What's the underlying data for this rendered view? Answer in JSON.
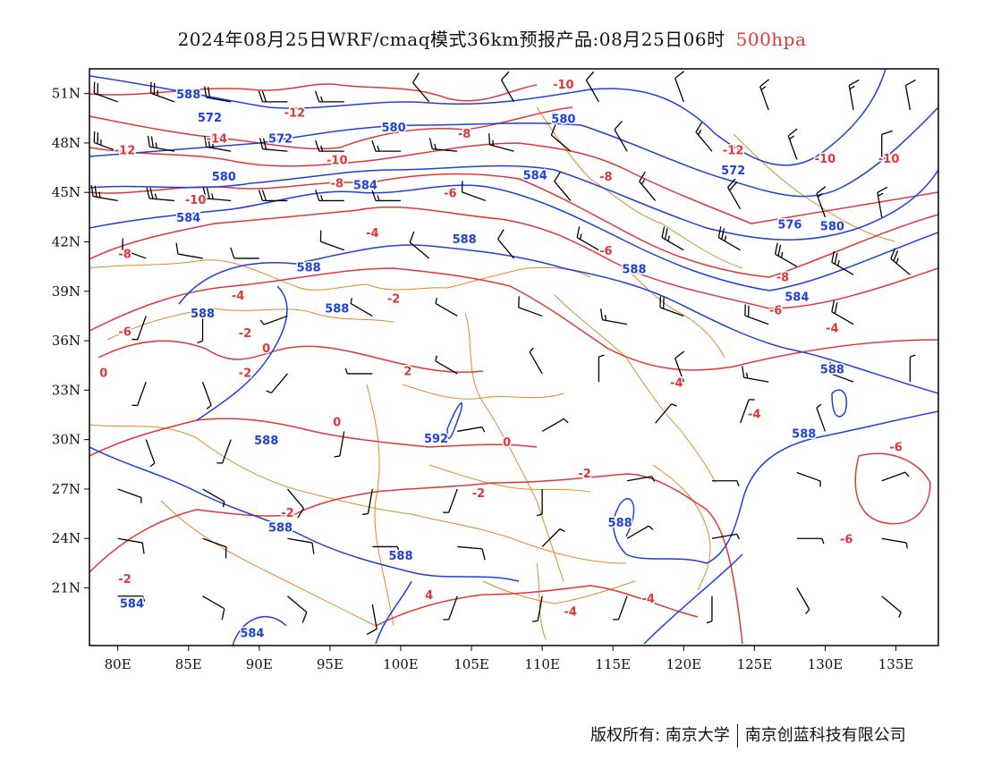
{
  "title": {
    "main": "2024年08月25日WRF/cmaq模式36km预报产品:08月25日06时",
    "level": "500hpa"
  },
  "axes": {
    "lat_labels": [
      "51N",
      "48N",
      "45N",
      "42N",
      "39N",
      "36N",
      "33N",
      "30N",
      "27N",
      "24N",
      "21N"
    ],
    "lon_labels": [
      "80E",
      "85E",
      "90E",
      "95E",
      "100E",
      "105E",
      "110E",
      "115E",
      "120E",
      "125E",
      "130E",
      "135E"
    ]
  },
  "map": {
    "lon_range": [
      78,
      138
    ],
    "lat_range": [
      17.5,
      52.5
    ],
    "colors": {
      "height_contour": "#1f3fe0",
      "temperature_contour": "#e23636",
      "boundary": "#e08a2a",
      "wind_barb": "#000000"
    },
    "height_contours": [
      {
        "value": "572",
        "labels": [
          [
            86.5,
            49.5
          ],
          [
            91.5,
            48.2
          ],
          [
            123.5,
            46.3
          ]
        ]
      },
      {
        "value": "576",
        "labels": [
          [
            127.5,
            43.0
          ]
        ]
      },
      {
        "value": "580",
        "labels": [
          [
            99.5,
            48.9
          ],
          [
            111.5,
            49.4
          ],
          [
            87.5,
            45.9
          ],
          [
            130.5,
            42.9
          ]
        ]
      },
      {
        "value": "584",
        "labels": [
          [
            97.5,
            45.4
          ],
          [
            109.5,
            46.0
          ],
          [
            85.0,
            43.4
          ],
          [
            128.0,
            38.6
          ],
          [
            81.0,
            20.0
          ],
          [
            89.5,
            18.2
          ]
        ]
      },
      {
        "value": "588",
        "labels": [
          [
            85.0,
            50.9
          ],
          [
            104.5,
            42.1
          ],
          [
            93.5,
            40.4
          ],
          [
            116.5,
            40.3
          ],
          [
            86.0,
            37.6
          ],
          [
            95.5,
            37.9
          ],
          [
            130.5,
            34.2
          ],
          [
            128.5,
            30.3
          ],
          [
            90.5,
            29.9
          ],
          [
            91.5,
            24.6
          ],
          [
            100.0,
            22.9
          ],
          [
            115.5,
            24.9
          ]
        ]
      },
      {
        "value": "592",
        "labels": [
          [
            102.5,
            30.0
          ]
        ]
      }
    ],
    "temperature_contours": [
      {
        "value": "-14",
        "labels": [
          [
            87.0,
            48.2
          ]
        ]
      },
      {
        "value": "-12",
        "labels": [
          [
            80.5,
            47.5
          ],
          [
            92.5,
            49.8
          ],
          [
            123.5,
            47.5
          ]
        ]
      },
      {
        "value": "-10",
        "labels": [
          [
            111.5,
            51.5
          ],
          [
            95.5,
            46.9
          ],
          [
            85.5,
            44.5
          ],
          [
            130.0,
            47.0
          ],
          [
            134.5,
            47.0
          ]
        ]
      },
      {
        "value": "-8",
        "labels": [
          [
            104.5,
            48.5
          ],
          [
            95.5,
            45.5
          ],
          [
            114.5,
            45.9
          ],
          [
            80.5,
            41.2
          ],
          [
            127.0,
            39.8
          ]
        ]
      },
      {
        "value": "-6",
        "labels": [
          [
            103.5,
            44.9
          ],
          [
            114.5,
            41.4
          ],
          [
            126.5,
            37.8
          ],
          [
            80.5,
            36.5
          ],
          [
            135.0,
            29.5
          ],
          [
            131.5,
            23.9
          ]
        ]
      },
      {
        "value": "-4",
        "labels": [
          [
            98.0,
            42.5
          ],
          [
            88.5,
            38.7
          ],
          [
            119.5,
            33.4
          ],
          [
            125.0,
            31.5
          ],
          [
            130.5,
            36.7
          ],
          [
            112.0,
            19.5
          ],
          [
            117.5,
            20.3
          ]
        ]
      },
      {
        "value": "-2",
        "labels": [
          [
            99.5,
            38.5
          ],
          [
            89.0,
            36.4
          ],
          [
            89.0,
            34.0
          ],
          [
            105.5,
            26.7
          ],
          [
            113.0,
            27.9
          ],
          [
            80.5,
            21.5
          ],
          [
            92.0,
            25.5
          ]
        ]
      },
      {
        "value": "0",
        "labels": [
          [
            79.0,
            34.0
          ],
          [
            90.5,
            35.5
          ],
          [
            95.5,
            31.0
          ],
          [
            107.5,
            29.8
          ]
        ]
      },
      {
        "value": "2",
        "labels": [
          [
            100.5,
            34.1
          ]
        ]
      },
      {
        "value": "4",
        "labels": [
          [
            102.0,
            20.5
          ]
        ]
      }
    ],
    "wind_barbs": [
      {
        "lon": 80,
        "lat": 50.5,
        "speed": 20,
        "dir": 290
      },
      {
        "lon": 84,
        "lat": 50.5,
        "speed": 25,
        "dir": 290
      },
      {
        "lon": 88,
        "lat": 50.5,
        "speed": 20,
        "dir": 280
      },
      {
        "lon": 92,
        "lat": 50.5,
        "speed": 20,
        "dir": 270
      },
      {
        "lon": 96,
        "lat": 50.5,
        "speed": 15,
        "dir": 270
      },
      {
        "lon": 102,
        "lat": 50.5,
        "speed": 10,
        "dir": 320
      },
      {
        "lon": 108,
        "lat": 50.5,
        "speed": 10,
        "dir": 330
      },
      {
        "lon": 114,
        "lat": 50.5,
        "speed": 10,
        "dir": 330
      },
      {
        "lon": 120,
        "lat": 50.5,
        "speed": 10,
        "dir": 340
      },
      {
        "lon": 126,
        "lat": 50.0,
        "speed": 15,
        "dir": 340
      },
      {
        "lon": 132,
        "lat": 50.0,
        "speed": 15,
        "dir": 350
      },
      {
        "lon": 136,
        "lat": 50.0,
        "speed": 10,
        "dir": 350
      },
      {
        "lon": 80,
        "lat": 47.5,
        "speed": 25,
        "dir": 290
      },
      {
        "lon": 84,
        "lat": 47.5,
        "speed": 25,
        "dir": 280
      },
      {
        "lon": 88,
        "lat": 47.5,
        "speed": 25,
        "dir": 280
      },
      {
        "lon": 92,
        "lat": 47.5,
        "speed": 20,
        "dir": 275
      },
      {
        "lon": 96,
        "lat": 47.5,
        "speed": 15,
        "dir": 270
      },
      {
        "lon": 100,
        "lat": 47.5,
        "speed": 15,
        "dir": 270
      },
      {
        "lon": 104,
        "lat": 47.5,
        "speed": 15,
        "dir": 275
      },
      {
        "lon": 108,
        "lat": 47.5,
        "speed": 15,
        "dir": 285
      },
      {
        "lon": 112,
        "lat": 47.5,
        "speed": 10,
        "dir": 310
      },
      {
        "lon": 116,
        "lat": 47.5,
        "speed": 10,
        "dir": 330
      },
      {
        "lon": 122,
        "lat": 47.5,
        "speed": 15,
        "dir": 320
      },
      {
        "lon": 128,
        "lat": 47.0,
        "speed": 15,
        "dir": 340
      },
      {
        "lon": 134,
        "lat": 47.0,
        "speed": 10,
        "dir": 0
      },
      {
        "lon": 80,
        "lat": 44.5,
        "speed": 25,
        "dir": 280
      },
      {
        "lon": 84,
        "lat": 44.5,
        "speed": 25,
        "dir": 275
      },
      {
        "lon": 88,
        "lat": 44.5,
        "speed": 25,
        "dir": 275
      },
      {
        "lon": 92,
        "lat": 44.5,
        "speed": 20,
        "dir": 270
      },
      {
        "lon": 96,
        "lat": 44.5,
        "speed": 15,
        "dir": 270
      },
      {
        "lon": 100,
        "lat": 44.5,
        "speed": 15,
        "dir": 270
      },
      {
        "lon": 106,
        "lat": 44.5,
        "speed": 10,
        "dir": 290
      },
      {
        "lon": 112,
        "lat": 44.5,
        "speed": 10,
        "dir": 320
      },
      {
        "lon": 118,
        "lat": 44.5,
        "speed": 15,
        "dir": 320
      },
      {
        "lon": 124,
        "lat": 44.0,
        "speed": 20,
        "dir": 330
      },
      {
        "lon": 130,
        "lat": 43.5,
        "speed": 15,
        "dir": 340
      },
      {
        "lon": 134,
        "lat": 43.5,
        "speed": 15,
        "dir": 350
      },
      {
        "lon": 82,
        "lat": 41.0,
        "speed": 10,
        "dir": 290
      },
      {
        "lon": 86,
        "lat": 41.0,
        "speed": 10,
        "dir": 280
      },
      {
        "lon": 90,
        "lat": 41.0,
        "speed": 10,
        "dir": 270
      },
      {
        "lon": 96,
        "lat": 41.5,
        "speed": 10,
        "dir": 290
      },
      {
        "lon": 102,
        "lat": 41.0,
        "speed": 10,
        "dir": 310
      },
      {
        "lon": 108,
        "lat": 41.0,
        "speed": 10,
        "dir": 320
      },
      {
        "lon": 114,
        "lat": 41.5,
        "speed": 15,
        "dir": 300
      },
      {
        "lon": 120,
        "lat": 41.5,
        "speed": 25,
        "dir": 300
      },
      {
        "lon": 124,
        "lat": 41.5,
        "speed": 25,
        "dir": 300
      },
      {
        "lon": 128,
        "lat": 40.5,
        "speed": 25,
        "dir": 300
      },
      {
        "lon": 132,
        "lat": 40.0,
        "speed": 25,
        "dir": 300
      },
      {
        "lon": 136,
        "lat": 40.0,
        "speed": 25,
        "dir": 310
      },
      {
        "lon": 82,
        "lat": 37.5,
        "speed": 5,
        "dir": 200
      },
      {
        "lon": 86,
        "lat": 37.5,
        "speed": 5,
        "dir": 180
      },
      {
        "lon": 92,
        "lat": 37.5,
        "speed": 5,
        "dir": 250
      },
      {
        "lon": 98,
        "lat": 37.5,
        "speed": 5,
        "dir": 300
      },
      {
        "lon": 104,
        "lat": 37.5,
        "speed": 5,
        "dir": 300
      },
      {
        "lon": 110,
        "lat": 37.5,
        "speed": 10,
        "dir": 290
      },
      {
        "lon": 116,
        "lat": 37.0,
        "speed": 15,
        "dir": 280
      },
      {
        "lon": 120,
        "lat": 37.5,
        "speed": 20,
        "dir": 290
      },
      {
        "lon": 126,
        "lat": 37.0,
        "speed": 20,
        "dir": 290
      },
      {
        "lon": 132,
        "lat": 37.0,
        "speed": 20,
        "dir": 300
      },
      {
        "lon": 82,
        "lat": 33.5,
        "speed": 5,
        "dir": 200
      },
      {
        "lon": 86,
        "lat": 33.5,
        "speed": 5,
        "dir": 160
      },
      {
        "lon": 92,
        "lat": 34.0,
        "speed": 5,
        "dir": 220
      },
      {
        "lon": 98,
        "lat": 34.0,
        "speed": 5,
        "dir": 270
      },
      {
        "lon": 104,
        "lat": 34.0,
        "speed": 5,
        "dir": 300
      },
      {
        "lon": 110,
        "lat": 34.0,
        "speed": 5,
        "dir": 330
      },
      {
        "lon": 114,
        "lat": 33.5,
        "speed": 5,
        "dir": 0
      },
      {
        "lon": 120,
        "lat": 33.5,
        "speed": 10,
        "dir": 340
      },
      {
        "lon": 126,
        "lat": 33.5,
        "speed": 15,
        "dir": 280
      },
      {
        "lon": 132,
        "lat": 33.5,
        "speed": 10,
        "dir": 290
      },
      {
        "lon": 136,
        "lat": 33.5,
        "speed": 5,
        "dir": 0
      },
      {
        "lon": 82,
        "lat": 30.0,
        "speed": 5,
        "dir": 160
      },
      {
        "lon": 88,
        "lat": 30.0,
        "speed": 5,
        "dir": 200
      },
      {
        "lon": 96,
        "lat": 30.5,
        "speed": 5,
        "dir": 190
      },
      {
        "lon": 104,
        "lat": 30.5,
        "speed": 5,
        "dir": 80
      },
      {
        "lon": 110,
        "lat": 30.5,
        "speed": 5,
        "dir": 60
      },
      {
        "lon": 118,
        "lat": 31.0,
        "speed": 5,
        "dir": 40
      },
      {
        "lon": 124,
        "lat": 31.0,
        "speed": 5,
        "dir": 20
      },
      {
        "lon": 130,
        "lat": 30.5,
        "speed": 5,
        "dir": 340
      },
      {
        "lon": 80,
        "lat": 27.0,
        "speed": 5,
        "dir": 110
      },
      {
        "lon": 86,
        "lat": 27.0,
        "speed": 5,
        "dir": 120
      },
      {
        "lon": 92,
        "lat": 27.0,
        "speed": 10,
        "dir": 140
      },
      {
        "lon": 98,
        "lat": 27.0,
        "speed": 5,
        "dir": 190
      },
      {
        "lon": 104,
        "lat": 27.0,
        "speed": 5,
        "dir": 200
      },
      {
        "lon": 110,
        "lat": 27.0,
        "speed": 5,
        "dir": 180
      },
      {
        "lon": 116,
        "lat": 27.5,
        "speed": 5,
        "dir": 80
      },
      {
        "lon": 122,
        "lat": 27.5,
        "speed": 5,
        "dir": 90
      },
      {
        "lon": 128,
        "lat": 28.0,
        "speed": 5,
        "dir": 110
      },
      {
        "lon": 134,
        "lat": 27.5,
        "speed": 5,
        "dir": 70
      },
      {
        "lon": 80,
        "lat": 24.0,
        "speed": 10,
        "dir": 100
      },
      {
        "lon": 86,
        "lat": 24.0,
        "speed": 10,
        "dir": 110
      },
      {
        "lon": 92,
        "lat": 24.0,
        "speed": 10,
        "dir": 100
      },
      {
        "lon": 98,
        "lat": 23.5,
        "speed": 10,
        "dir": 90
      },
      {
        "lon": 104,
        "lat": 23.5,
        "speed": 10,
        "dir": 95
      },
      {
        "lon": 110,
        "lat": 23.5,
        "speed": 5,
        "dir": 45
      },
      {
        "lon": 116,
        "lat": 24.0,
        "speed": 5,
        "dir": 60
      },
      {
        "lon": 122,
        "lat": 24.0,
        "speed": 5,
        "dir": 80
      },
      {
        "lon": 128,
        "lat": 24.0,
        "speed": 5,
        "dir": 90
      },
      {
        "lon": 134,
        "lat": 24.0,
        "speed": 5,
        "dir": 100
      },
      {
        "lon": 80,
        "lat": 20.5,
        "speed": 5,
        "dir": 90
      },
      {
        "lon": 86,
        "lat": 20.5,
        "speed": 10,
        "dir": 120
      },
      {
        "lon": 92,
        "lat": 20.5,
        "speed": 10,
        "dir": 130
      },
      {
        "lon": 98,
        "lat": 20.0,
        "speed": 10,
        "dir": 170
      },
      {
        "lon": 104,
        "lat": 20.5,
        "speed": 5,
        "dir": 200
      },
      {
        "lon": 110,
        "lat": 20.5,
        "speed": 5,
        "dir": 190
      },
      {
        "lon": 116,
        "lat": 20.5,
        "speed": 5,
        "dir": 200
      },
      {
        "lon": 122,
        "lat": 20.5,
        "speed": 5,
        "dir": 180
      },
      {
        "lon": 128,
        "lat": 21.0,
        "speed": 5,
        "dir": 150
      },
      {
        "lon": 134,
        "lat": 20.5,
        "speed": 5,
        "dir": 130
      }
    ]
  },
  "footer": {
    "copyright": "版权所有: 南京大学",
    "company": "南京创蓝科技有限公司"
  }
}
